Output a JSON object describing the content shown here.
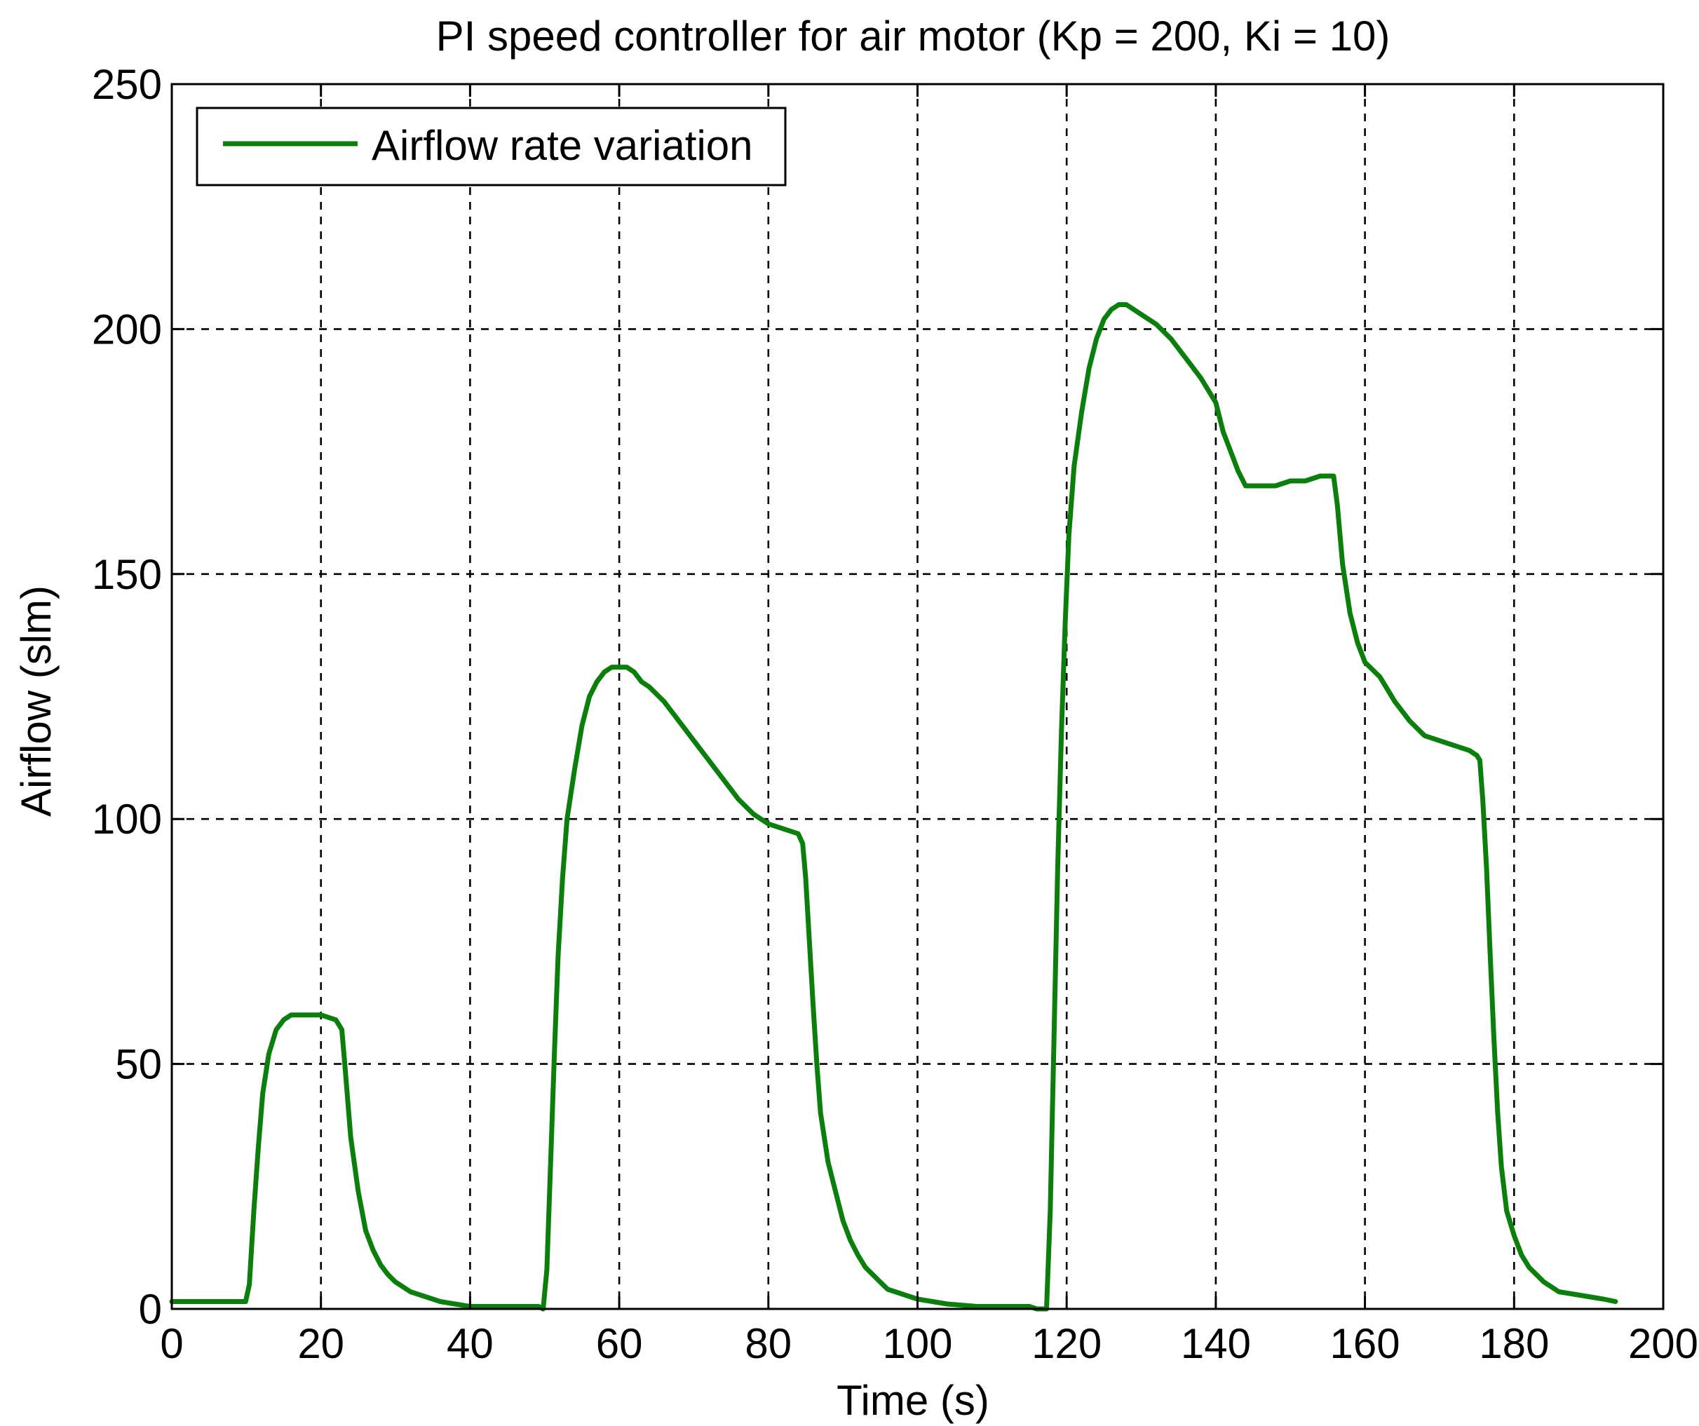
{
  "chart_data": {
    "type": "line",
    "title": "PI speed controller for air motor (Kp = 200, Ki = 10)",
    "xlabel": "Time (s)",
    "ylabel": "Airflow (slm)",
    "xlim": [
      0,
      200
    ],
    "ylim": [
      0,
      250
    ],
    "xticks": [
      0,
      20,
      40,
      60,
      80,
      100,
      120,
      140,
      160,
      180,
      200
    ],
    "yticks": [
      0,
      50,
      100,
      150,
      200,
      250
    ],
    "grid": true,
    "legend_position": "top-left",
    "series": [
      {
        "name": "Airflow rate variation",
        "color": "#0b7f0b",
        "x": [
          0,
          9.9,
          10.4,
          11,
          11.6,
          12.2,
          13,
          14,
          15,
          16,
          17,
          18,
          19,
          20,
          21,
          22,
          22.8,
          23.2,
          24,
          25,
          26,
          27,
          28,
          29,
          30,
          31,
          32,
          34,
          36,
          38,
          40,
          45,
          48,
          49.2,
          49.8,
          50.3,
          50.8,
          51.3,
          51.8,
          52.4,
          53,
          54,
          55,
          56,
          57,
          58,
          59,
          60,
          61,
          62,
          63,
          64,
          66,
          68,
          70,
          72,
          74,
          76,
          78,
          80,
          82,
          84,
          84.6,
          85,
          85.5,
          86,
          86.5,
          87,
          88,
          89,
          90,
          91,
          92,
          93,
          94,
          95,
          96,
          98,
          100,
          104,
          108,
          112,
          114,
          115,
          116,
          117,
          117.3,
          117.8,
          118.3,
          118.8,
          119.3,
          119.8,
          120.3,
          121,
          122,
          123,
          124,
          125,
          126,
          127,
          128,
          129,
          130,
          132,
          134,
          136,
          138,
          140,
          141,
          142,
          143,
          144,
          146,
          148,
          150,
          152,
          154,
          155,
          155.4,
          155.8,
          156.3,
          157,
          158,
          159,
          160,
          162,
          164,
          166,
          168,
          170,
          172,
          174,
          175,
          175.4,
          175.8,
          176.3,
          176.8,
          177.3,
          177.8,
          178.3,
          179,
          180,
          181,
          182,
          183,
          184,
          185,
          186,
          188,
          190,
          192,
          193.6
        ],
        "y": [
          1.5,
          1.5,
          5,
          20,
          33,
          44,
          52,
          57,
          59,
          60,
          60,
          60,
          60,
          60,
          59.5,
          59,
          57,
          50,
          35,
          24,
          16,
          12,
          9,
          7,
          5.5,
          4.5,
          3.5,
          2.5,
          1.5,
          1,
          0.5,
          0.5,
          0.5,
          0.5,
          0,
          8,
          30,
          52,
          72,
          88,
          100,
          110,
          119,
          125,
          128,
          130,
          131,
          131,
          131,
          130,
          128,
          127,
          124,
          120,
          116,
          112,
          108,
          104,
          101,
          99,
          98,
          97,
          95,
          88,
          75,
          62,
          50,
          40,
          30,
          24,
          18,
          14,
          11,
          8.5,
          7,
          5.5,
          4,
          3,
          2,
          1,
          0.5,
          0.5,
          0.5,
          0.5,
          0,
          0,
          0,
          20,
          55,
          90,
          118,
          140,
          158,
          172,
          183,
          192,
          198,
          202,
          204,
          205,
          205,
          204,
          203,
          201,
          198,
          194,
          190,
          185,
          179,
          175,
          171,
          168,
          168,
          168,
          169,
          169,
          170,
          170,
          170,
          170,
          164,
          152,
          142,
          136,
          132,
          129,
          124,
          120,
          117,
          116,
          115,
          114,
          113,
          112,
          104,
          90,
          72,
          55,
          40,
          29,
          20,
          15,
          11,
          8.5,
          7,
          5.5,
          4.5,
          3.5,
          3,
          2.5,
          2,
          1.5
        ]
      }
    ]
  }
}
